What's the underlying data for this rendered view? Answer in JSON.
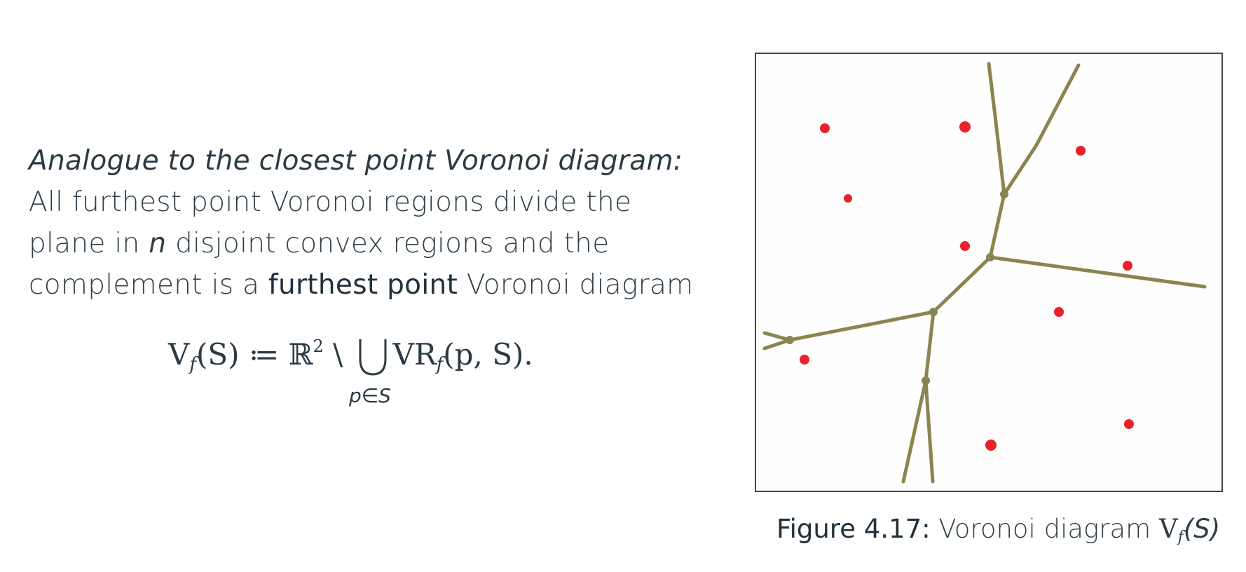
{
  "text": {
    "heading": "Analogue to the closest point Voronoi diagram:",
    "line1": "All furthest point Voronoi regions divide the",
    "line2_a": "plane in ",
    "line2_var": "n",
    "line2_b": " disjoint convex regions and the",
    "line3_a": "complement is a ",
    "line3_bold": "furthest point",
    "line3_b": " Voronoi diagram"
  },
  "formula": {
    "lhs": "V",
    "lhs_sub": "f",
    "lhs_arg": "(S) ≔ ℝ",
    "exp": "2",
    "setminus": " \\ ",
    "rhs": "VR",
    "rhs_sub": "f",
    "rhs_arg": "(p, S).",
    "under": "p∈S"
  },
  "figure": {
    "caption_label": "Figure 4.17:",
    "caption_text": " Voronoi diagram ",
    "caption_math": "V",
    "caption_sub": "f",
    "caption_arg": "(S)",
    "point_color": "#e8212b",
    "edge_color": "#8c8450"
  }
}
